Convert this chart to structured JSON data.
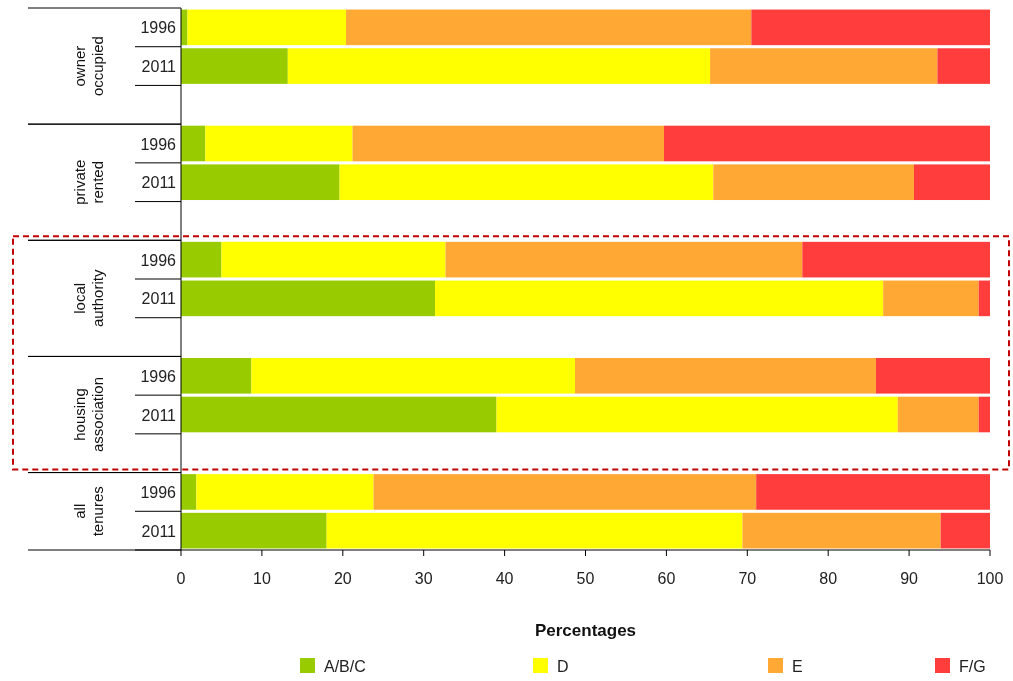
{
  "chart_data": {
    "type": "bar",
    "orientation": "horizontal",
    "stacked": true,
    "xlabel": "Percentages",
    "categories": [
      "1996",
      "2011",
      null,
      "1996",
      "2011",
      null,
      "1996",
      "2011",
      null,
      "1996",
      "2011",
      null,
      "1996",
      "2011"
    ],
    "annotations": [
      "owner occupied",
      "private rented",
      "local authority",
      "housing association",
      "all tenures"
    ],
    "series": [
      {
        "name": "A/B/C",
        "color": "#99cc00",
        "values": [
          0.8,
          13.2,
          null,
          3.0,
          19.6,
          null,
          5.0,
          31.4,
          null,
          8.7,
          39.0,
          null,
          1.9,
          18.0
        ]
      },
      {
        "name": "D",
        "color": "#ffff00",
        "values": [
          19.6,
          52.2,
          null,
          18.2,
          46.2,
          null,
          27.7,
          55.4,
          null,
          40.0,
          49.6,
          null,
          21.9,
          51.4
        ]
      },
      {
        "name": "E",
        "color": "#ffa833",
        "values": [
          50.1,
          28.1,
          null,
          38.5,
          24.8,
          null,
          44.1,
          11.8,
          null,
          37.2,
          10.0,
          null,
          47.3,
          24.5
        ]
      },
      {
        "name": "F/G",
        "color": "#ff3d3d",
        "values": [
          29.5,
          6.5,
          null,
          40.3,
          9.4,
          null,
          23.2,
          1.4,
          null,
          14.1,
          1.4,
          null,
          28.9,
          6.1
        ]
      }
    ],
    "xlim": [
      0,
      100
    ],
    "xticks": [
      0,
      10,
      20,
      30,
      40,
      50,
      60,
      70,
      80,
      90,
      100
    ],
    "grid": false,
    "legend": "bottom"
  }
}
